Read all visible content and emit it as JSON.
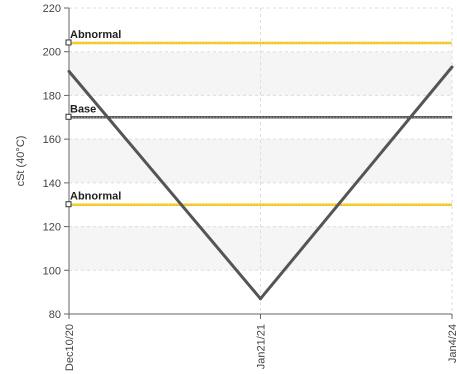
{
  "chart_data": {
    "type": "line",
    "title": "",
    "xlabel": "",
    "ylabel": "cSt (40°C)",
    "ylim": [
      80,
      220
    ],
    "yticks": [
      "80",
      "100",
      "120",
      "140",
      "160",
      "180",
      "200",
      "220"
    ],
    "categories": [
      "Dec10/20",
      "Jan21/21",
      "Jan4/24"
    ],
    "series": [
      {
        "values": [
          191,
          87,
          193
        ],
        "color": "#555555"
      }
    ],
    "reference_lines": [
      {
        "label": "Abnormal",
        "value": 204,
        "color": "#f0c419"
      },
      {
        "label": "Base",
        "value": 170,
        "color": "#555555"
      },
      {
        "label": "Abnormal",
        "value": 130,
        "color": "#f0c419"
      }
    ],
    "grid": true,
    "band_color": "#f5f5f5"
  }
}
